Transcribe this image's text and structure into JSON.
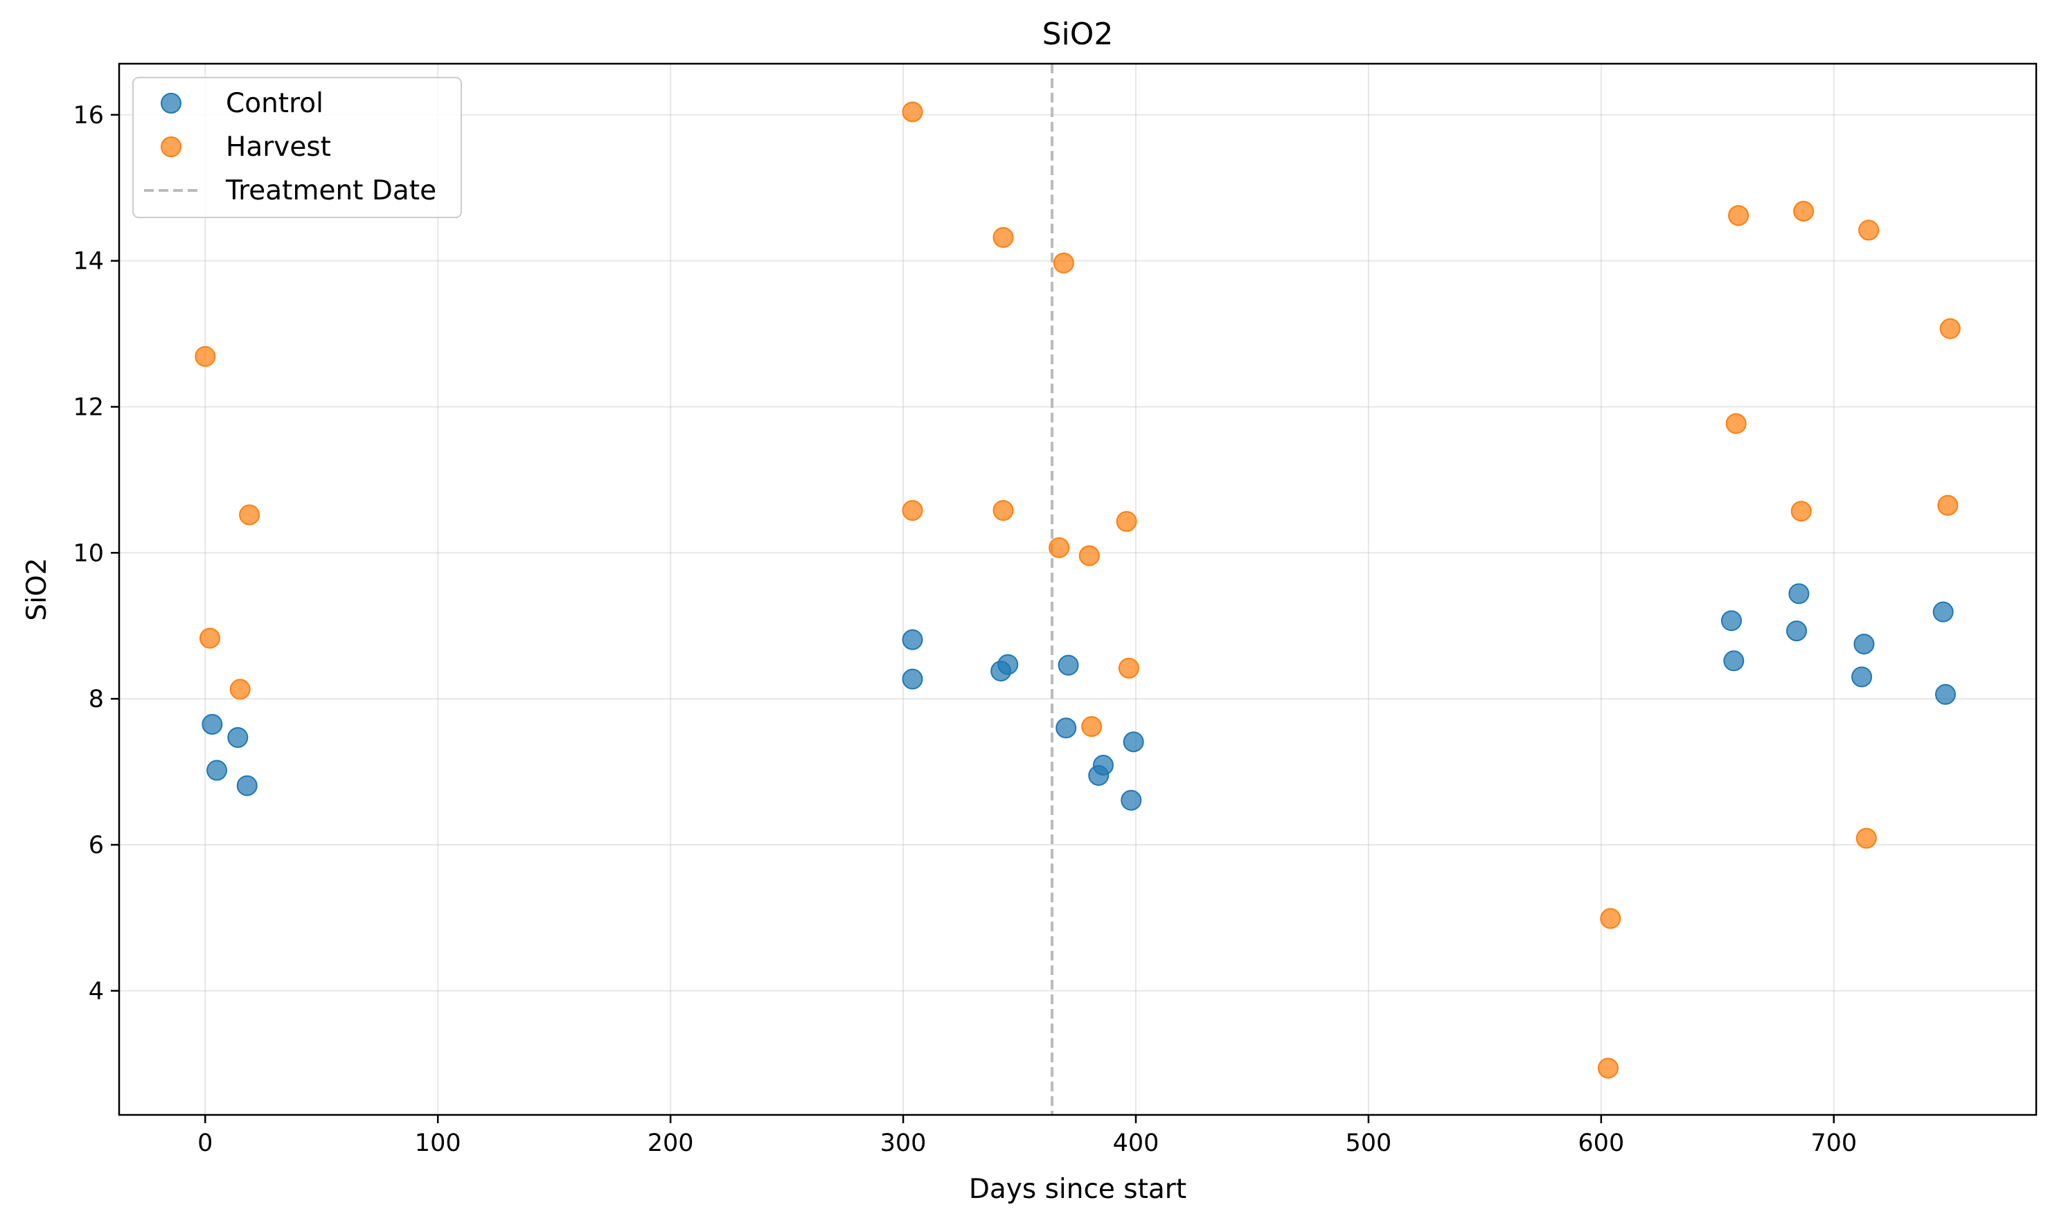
{
  "chart_data": {
    "type": "scatter",
    "title": "SiO2",
    "xlabel": "Days since start",
    "ylabel": "SiO2",
    "xlim": [
      -37,
      787
    ],
    "ylim": [
      2.3,
      16.7
    ],
    "xticks": [
      0,
      100,
      200,
      300,
      400,
      500,
      600,
      700
    ],
    "yticks": [
      4,
      6,
      8,
      10,
      12,
      14,
      16
    ],
    "grid": true,
    "legend_position": "top-left",
    "series": [
      {
        "name": "Control",
        "color": "#1f77b4",
        "points": [
          [
            3,
            7.65
          ],
          [
            5,
            7.02
          ],
          [
            14,
            7.47
          ],
          [
            18,
            6.81
          ],
          [
            304,
            8.81
          ],
          [
            304,
            8.27
          ],
          [
            342,
            8.38
          ],
          [
            345,
            8.47
          ],
          [
            370,
            7.6
          ],
          [
            371,
            8.46
          ],
          [
            384,
            6.95
          ],
          [
            386,
            7.09
          ],
          [
            398,
            6.61
          ],
          [
            399,
            7.41
          ],
          [
            656,
            9.07
          ],
          [
            657,
            8.52
          ],
          [
            684,
            8.93
          ],
          [
            685,
            9.44
          ],
          [
            712,
            8.3
          ],
          [
            713,
            8.75
          ],
          [
            747,
            9.19
          ],
          [
            748,
            8.06
          ]
        ]
      },
      {
        "name": "Harvest",
        "color": "#ff7f0e",
        "points": [
          [
            0,
            12.69
          ],
          [
            2,
            8.83
          ],
          [
            15,
            8.13
          ],
          [
            19,
            10.52
          ],
          [
            304,
            16.04
          ],
          [
            304,
            10.58
          ],
          [
            343,
            14.32
          ],
          [
            343,
            10.58
          ],
          [
            367,
            10.07
          ],
          [
            369,
            13.97
          ],
          [
            380,
            9.96
          ],
          [
            381,
            7.62
          ],
          [
            396,
            10.43
          ],
          [
            397,
            8.42
          ],
          [
            603,
            2.94
          ],
          [
            604,
            4.99
          ],
          [
            658,
            11.77
          ],
          [
            659,
            14.62
          ],
          [
            686,
            10.57
          ],
          [
            687,
            14.68
          ],
          [
            714,
            6.09
          ],
          [
            715,
            14.42
          ],
          [
            749,
            10.65
          ],
          [
            750,
            13.07
          ]
        ]
      }
    ],
    "reference_lines": [
      {
        "name": "Treatment Date",
        "orientation": "vertical",
        "x": 364,
        "color": "#bbbbbb",
        "style": "dashed"
      }
    ]
  }
}
